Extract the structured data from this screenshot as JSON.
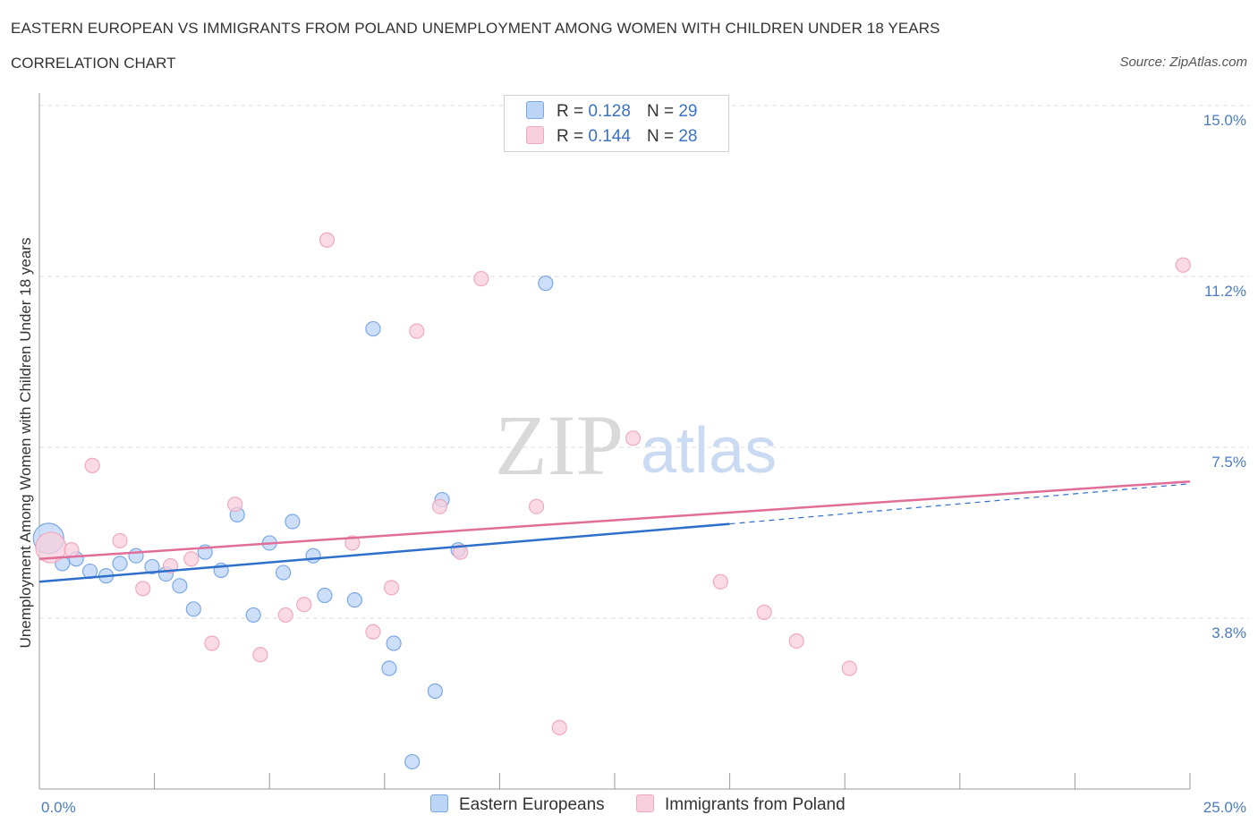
{
  "header": {
    "title": "EASTERN EUROPEAN VS IMMIGRANTS FROM POLAND UNEMPLOYMENT AMONG WOMEN WITH CHILDREN UNDER 18 YEARS",
    "subtitle": "CORRELATION CHART",
    "source": "Source: ZipAtlas.com"
  },
  "watermark": {
    "zip": "ZIP",
    "atlas": "atlas"
  },
  "legend": {
    "rows": [
      {
        "r_label": "R =",
        "r_value": "0.128",
        "n_label": "N =",
        "n_value": "29"
      },
      {
        "r_label": "R =",
        "r_value": "0.144",
        "n_label": "N =",
        "n_value": "28"
      }
    ]
  },
  "chart_data": {
    "type": "scatter",
    "title": "EASTERN EUROPEAN VS IMMIGRANTS FROM POLAND UNEMPLOYMENT AMONG WOMEN WITH CHILDREN UNDER 18 YEARS",
    "xlabel": "",
    "ylabel": "Unemployment Among Women with Children Under 18 years",
    "xlim": [
      0,
      25
    ],
    "ylim": [
      0,
      15
    ],
    "x_tick_labels": [
      {
        "value": 0,
        "label": "0.0%"
      },
      {
        "value": 25,
        "label": "25.0%"
      }
    ],
    "y_tick_labels": [
      {
        "value": 15,
        "label": "15.0%"
      },
      {
        "value": 11.25,
        "label": "11.2%"
      },
      {
        "value": 7.5,
        "label": "7.5%"
      },
      {
        "value": 3.75,
        "label": "3.8%"
      }
    ],
    "x_minor_ticks": [
      2.5,
      5,
      7.5,
      10,
      12.5,
      15,
      17.5,
      20,
      22.5,
      25
    ],
    "grid": true,
    "legend_position": "top-center",
    "series": [
      {
        "name": "Eastern Europeans",
        "color": "#7aa8e6",
        "fill": "#bcd4f5",
        "trend_color": "#2f6fcc",
        "trend": {
          "x0": 0,
          "y0": 4.55,
          "x1": 15,
          "y1": 5.82,
          "dashed_to_x": 25,
          "dashed_to_y": 6.7
        },
        "points": [
          {
            "x": 0.2,
            "y": 5.5,
            "size": "large"
          },
          {
            "x": 0.5,
            "y": 4.95
          },
          {
            "x": 0.8,
            "y": 5.05
          },
          {
            "x": 1.1,
            "y": 4.78
          },
          {
            "x": 1.45,
            "y": 4.68
          },
          {
            "x": 1.75,
            "y": 4.95
          },
          {
            "x": 2.1,
            "y": 5.12
          },
          {
            "x": 2.45,
            "y": 4.88
          },
          {
            "x": 2.75,
            "y": 4.72
          },
          {
            "x": 3.05,
            "y": 4.46
          },
          {
            "x": 3.35,
            "y": 3.95
          },
          {
            "x": 3.6,
            "y": 5.2
          },
          {
            "x": 3.95,
            "y": 4.8
          },
          {
            "x": 4.3,
            "y": 6.02
          },
          {
            "x": 4.65,
            "y": 3.82
          },
          {
            "x": 5.0,
            "y": 5.4
          },
          {
            "x": 5.3,
            "y": 4.75
          },
          {
            "x": 5.5,
            "y": 5.87
          },
          {
            "x": 5.95,
            "y": 5.12
          },
          {
            "x": 6.2,
            "y": 4.25
          },
          {
            "x": 6.85,
            "y": 4.15
          },
          {
            "x": 7.25,
            "y": 10.1
          },
          {
            "x": 7.7,
            "y": 3.2
          },
          {
            "x": 7.6,
            "y": 2.65
          },
          {
            "x": 8.1,
            "y": 0.6
          },
          {
            "x": 8.6,
            "y": 2.15
          },
          {
            "x": 8.75,
            "y": 6.35
          },
          {
            "x": 9.1,
            "y": 5.25
          },
          {
            "x": 11.0,
            "y": 11.1
          }
        ]
      },
      {
        "name": "Immigrants from Poland",
        "color": "#f0a8c0",
        "fill": "#f8cfdc",
        "trend_color": "#e06e98",
        "trend": {
          "x0": 0,
          "y0": 5.05,
          "x1": 25,
          "y1": 6.75
        },
        "points": [
          {
            "x": 0.25,
            "y": 5.3,
            "size": "large"
          },
          {
            "x": 0.7,
            "y": 5.25
          },
          {
            "x": 1.15,
            "y": 7.1
          },
          {
            "x": 1.75,
            "y": 5.45
          },
          {
            "x": 2.25,
            "y": 4.4
          },
          {
            "x": 2.85,
            "y": 4.9
          },
          {
            "x": 3.3,
            "y": 5.05
          },
          {
            "x": 3.75,
            "y": 3.2
          },
          {
            "x": 4.25,
            "y": 6.25
          },
          {
            "x": 4.8,
            "y": 2.95
          },
          {
            "x": 5.35,
            "y": 3.82
          },
          {
            "x": 5.75,
            "y": 4.05
          },
          {
            "x": 6.25,
            "y": 12.05
          },
          {
            "x": 6.8,
            "y": 5.4
          },
          {
            "x": 7.25,
            "y": 3.45
          },
          {
            "x": 7.65,
            "y": 4.42
          },
          {
            "x": 8.2,
            "y": 10.05
          },
          {
            "x": 8.7,
            "y": 6.2
          },
          {
            "x": 9.15,
            "y": 5.2
          },
          {
            "x": 9.6,
            "y": 11.2
          },
          {
            "x": 10.8,
            "y": 6.2
          },
          {
            "x": 11.3,
            "y": 1.35
          },
          {
            "x": 12.9,
            "y": 7.7
          },
          {
            "x": 14.8,
            "y": 4.55
          },
          {
            "x": 15.75,
            "y": 3.88
          },
          {
            "x": 16.45,
            "y": 3.25
          },
          {
            "x": 17.6,
            "y": 2.65
          },
          {
            "x": 24.85,
            "y": 11.5
          }
        ]
      }
    ]
  }
}
